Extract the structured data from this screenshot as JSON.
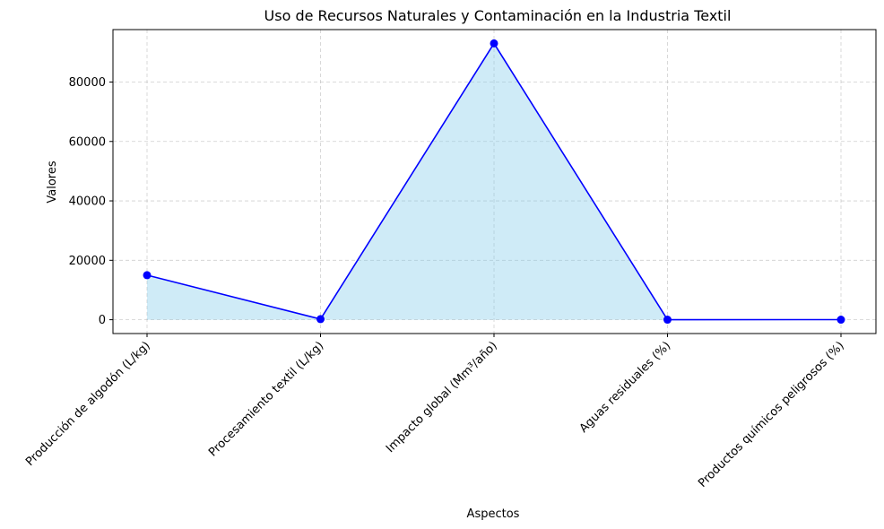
{
  "chart_data": {
    "type": "area",
    "title": "Uso de Recursos Naturales y Contaminación en la Industria Textil",
    "xlabel": "Aspectos",
    "ylabel": "Valores",
    "categories": [
      "Producción de algodón (L/kg)",
      "Procesamiento textil (L/kg)",
      "Impacto global (Mm³/año)",
      "Aguas residuales (%)",
      "Productos químicos peligrosos (%)"
    ],
    "series": [
      {
        "values": [
          15000,
          200,
          93000,
          20,
          25
        ]
      }
    ],
    "ylim": [
      -4650,
      97650
    ],
    "yticks": [
      0,
      20000,
      40000,
      60000,
      80000
    ],
    "grid": true,
    "colors": {
      "line": "#0000ff",
      "fill": "#87ceeb",
      "marker": "#0000ff"
    }
  }
}
